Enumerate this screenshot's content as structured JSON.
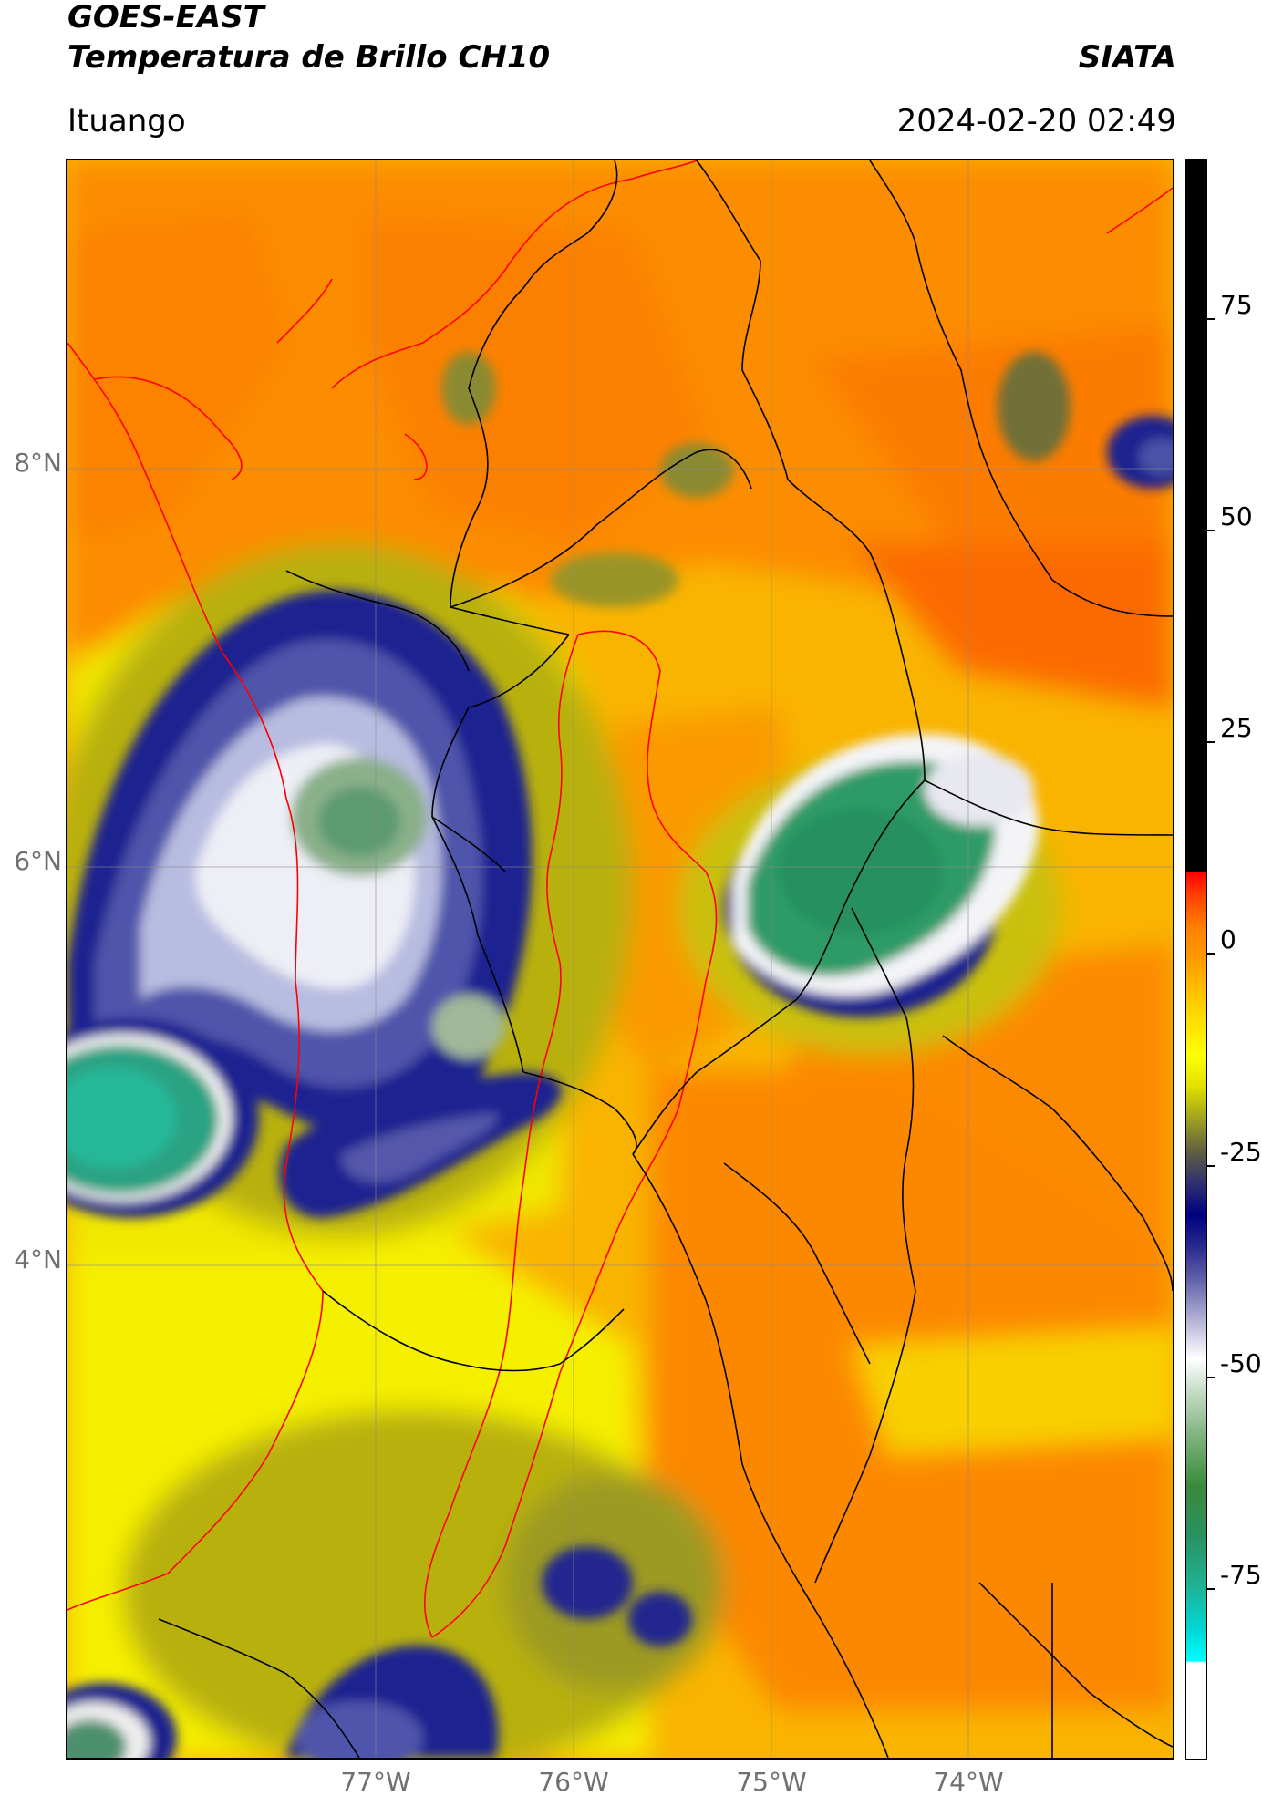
{
  "header": {
    "title_line1": "GOES-EAST",
    "title_line2": "Temperatura de Brillo CH10",
    "brand": "SIATA",
    "location": "Ituango",
    "timestamp": "2024-02-20 02:49"
  },
  "map_axes": {
    "lat_ticks": [
      {
        "value": 8,
        "label": "8°N"
      },
      {
        "value": 6,
        "label": "6°N"
      },
      {
        "value": 4,
        "label": "4°N"
      }
    ],
    "lon_ticks": [
      {
        "value": -77,
        "label": "77°W"
      },
      {
        "value": -76,
        "label": "76°W"
      },
      {
        "value": -75,
        "label": "75°W"
      },
      {
        "value": -74,
        "label": "74°W"
      }
    ],
    "lon_range": [
      -78.55,
      -72.95
    ],
    "lat_range": [
      1.52,
      9.53
    ],
    "gridlines": true
  },
  "colorbar": {
    "range": [
      -97,
      92
    ],
    "ticks": [
      {
        "value": 75,
        "label": "75"
      },
      {
        "value": 50,
        "label": "50"
      },
      {
        "value": 25,
        "label": "25"
      },
      {
        "value": 0,
        "label": "0"
      },
      {
        "value": -25,
        "label": "-25"
      },
      {
        "value": -50,
        "label": "-50"
      },
      {
        "value": -75,
        "label": "-75"
      }
    ]
  },
  "colors": {
    "orange": "#fc8a00",
    "yellow": "#f7f500",
    "olive": "#8c8a2a",
    "navy": "#1a1e86",
    "white": "#f5f5f5",
    "green": "#2f9b66",
    "teal": "#20c0a8",
    "red_border": "#ff0000",
    "black_border": "#000000"
  }
}
